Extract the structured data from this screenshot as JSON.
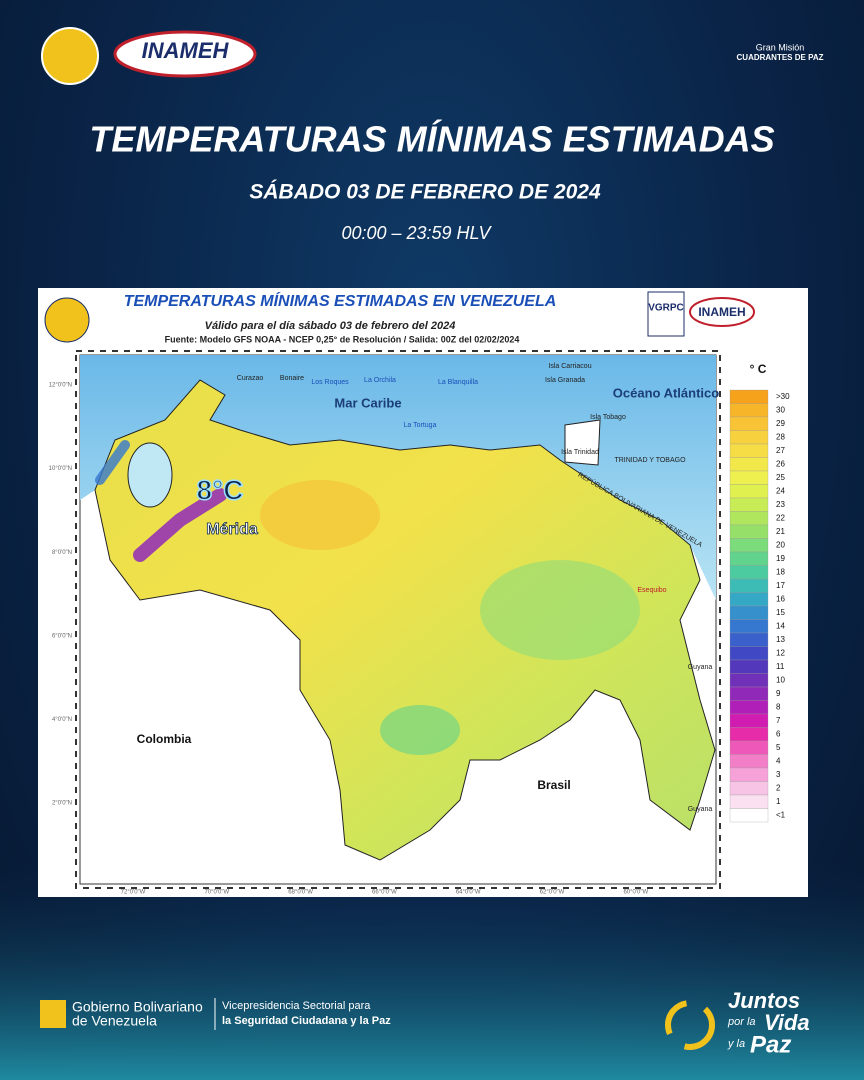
{
  "header": {
    "logo_left": "INAMEH",
    "logo_right_top": "Gran Misión",
    "logo_right": "CUADRANTES DE PAZ"
  },
  "title": "TEMPERATURAS MÍNIMAS ESTIMADAS",
  "subtitle": "SÁBADO 03 DE FEBRERO DE 2024",
  "time": "00:00 – 23:59 HLV",
  "map": {
    "title": "TEMPERATURAS MÍNIMAS ESTIMADAS EN VENEZUELA",
    "valid": "Válido para el día sábado 03 de febrero del 2024",
    "source": "Fuente: Modelo GFS NOAA - NCEP 0,25° de Resolución / Salida: 00Z del 02/02/2024",
    "logos": [
      "VGRPC",
      "INAMEH"
    ],
    "highlight": {
      "value": "8°C",
      "place": "Mérida"
    },
    "labels": {
      "sea": "Mar Caribe",
      "ocean": "Océano Atlántico",
      "colombia": "Colombia",
      "brasil": "Brasil",
      "guyana": "Guyana",
      "guyana_south": "Guyana",
      "esequibo": "Esequibo",
      "curazao": "Curazao",
      "bonaire": "Bonaire",
      "roques": "Los Roques",
      "orchila": "La Orchila",
      "blanquilla": "La Blanquilla",
      "tortuga": "La Tortuga",
      "carriacou": "Isla Carriacou",
      "granada": "Isla Granada",
      "tobago": "Isla Tobago",
      "trinidad": "Isla Trinidad",
      "tt": "TRINIDAD Y TOBAGO",
      "rbv": "REPÚBLICA BOLIVARIANA DE VENEZUELA"
    },
    "lat_labels": [
      "12°0'0\"N",
      "10°0'0\"N",
      "8°0'0\"N",
      "6°0'0\"N",
      "4°0'0\"N",
      "2°0'0\"N"
    ],
    "lon_labels": [
      "72°0'0\"W",
      "70°0'0\"W",
      "68°0'0\"W",
      "66°0'0\"W",
      "64°0'0\"W",
      "62°0'0\"W",
      "60°0'0\"W"
    ],
    "legend": {
      "unit": "° C",
      "labels": [
        ">30",
        "30",
        "29",
        "28",
        "27",
        "26",
        "25",
        "24",
        "23",
        "22",
        "21",
        "20",
        "19",
        "18",
        "17",
        "16",
        "15",
        "14",
        "13",
        "12",
        "11",
        "10",
        "9",
        "8",
        "7",
        "6",
        "5",
        "4",
        "3",
        "2",
        "1",
        "<1"
      ],
      "colors": [
        "#f7a21b",
        "#f7b52a",
        "#f8c435",
        "#f8d23e",
        "#f6dc45",
        "#f2e84a",
        "#eef04f",
        "#e0f04f",
        "#c8ec55",
        "#b0e65e",
        "#96e06a",
        "#7cdb7a",
        "#62d38c",
        "#4ccaa0",
        "#3cbcb4",
        "#34a8c4",
        "#3590cc",
        "#3678cf",
        "#3a60cc",
        "#4048c4",
        "#5438bc",
        "#7030b8",
        "#9028b8",
        "#b020b8",
        "#d01cb0",
        "#e62ca8",
        "#ee58b8",
        "#f27ec8",
        "#f6a2d8",
        "#f8c4e6",
        "#fbe0f2",
        "#ffffff"
      ]
    }
  },
  "footer": {
    "gov1": "Gobierno Bolivariano",
    "gov2": "de Venezuela",
    "vice1": "Vicepresidencia Sectorial para",
    "vice2": "la Seguridad Ciudadana y la Paz",
    "juntos": "Juntos",
    "por": "por la",
    "vida": "Vida",
    "yla": "y la",
    "paz": "Paz"
  }
}
